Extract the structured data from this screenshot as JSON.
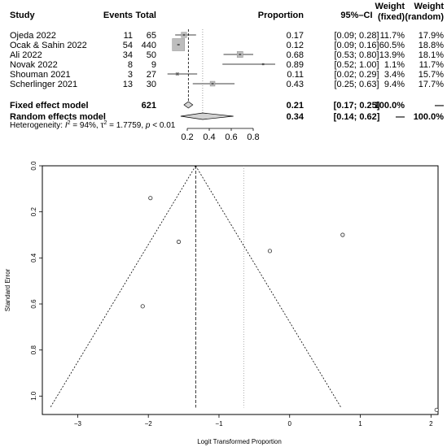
{
  "chart_data": [
    {
      "type": "forest",
      "headers": {
        "study": "Study",
        "events": "Events",
        "total": "Total",
        "proportion": "Proportion",
        "ci": "95%–CI",
        "weight_fixed_1": "Weight",
        "weight_fixed_2": "(fixed)",
        "weight_random_1": "Weight",
        "weight_random_2": "(random)"
      },
      "studies": [
        {
          "name": "Ojeda 2022",
          "events": "11",
          "total": "65",
          "prop_text": "0.17",
          "ci_text": "[0.09; 0.28]",
          "wf": "11.7%",
          "wr": "17.9%",
          "p": 0.17,
          "lo": 0.09,
          "hi": 0.28,
          "w": 11.7
        },
        {
          "name": "Ocak & Sahin 2022",
          "events": "54",
          "total": "440",
          "prop_text": "0.12",
          "ci_text": "[0.09; 0.16]",
          "wf": "60.5%",
          "wr": "18.8%",
          "p": 0.12,
          "lo": 0.09,
          "hi": 0.16,
          "w": 60.5
        },
        {
          "name": "Ali 2022",
          "events": "34",
          "total": "50",
          "prop_text": "0.68",
          "ci_text": "[0.53; 0.80]",
          "wf": "13.9%",
          "wr": "18.1%",
          "p": 0.68,
          "lo": 0.53,
          "hi": 0.8,
          "w": 13.9
        },
        {
          "name": "Novak 2022",
          "events": "8",
          "total": "9",
          "prop_text": "0.89",
          "ci_text": "[0.52; 1.00]",
          "wf": "1.1%",
          "wr": "11.7%",
          "p": 0.89,
          "lo": 0.52,
          "hi": 1.0,
          "w": 1.1
        },
        {
          "name": "Shouman 2021",
          "events": "3",
          "total": "27",
          "prop_text": "0.11",
          "ci_text": "[0.02; 0.29]",
          "wf": "3.4%",
          "wr": "15.7%",
          "p": 0.11,
          "lo": 0.02,
          "hi": 0.29,
          "w": 3.4
        },
        {
          "name": "Scherlinger 2021",
          "events": "13",
          "total": "30",
          "prop_text": "0.43",
          "ci_text": "[0.25; 0.63]",
          "wf": "9.4%",
          "wr": "17.7%",
          "p": 0.43,
          "lo": 0.25,
          "hi": 0.63,
          "w": 9.4
        }
      ],
      "fixed": {
        "label": "Fixed effect model",
        "total": "621",
        "prop_text": "0.21",
        "ci_text": "[0.17; 0.25]",
        "wf": "100.0%",
        "wr": "—",
        "p": 0.21,
        "lo": 0.17,
        "hi": 0.25
      },
      "random": {
        "label": "Random effects model",
        "prop_text": "0.34",
        "ci_text": "[0.14; 0.62]",
        "wf": "—",
        "wr": "100.0%",
        "p": 0.34,
        "lo": 0.14,
        "hi": 0.62
      },
      "heterogeneity": {
        "prefix": "Heterogeneity: ",
        "i2": "I",
        "i2_sup": "2",
        "i2_rest": " = 94%, ",
        "tau": "τ",
        "tau_sup": "2",
        "tau_rest": " = 1.7759, ",
        "p": "p",
        "p_rest": " < 0.01"
      },
      "xaxis": {
        "min": 0.0,
        "max": 1.0,
        "ticks": [
          0.2,
          0.4,
          0.6,
          0.8
        ],
        "tick_labels": [
          "0.2",
          "0.4",
          "0.6",
          "0.8"
        ]
      }
    },
    {
      "type": "scatter",
      "subtype": "funnel",
      "xlabel": "Logit Transformed Proportion",
      "ylabel": "Standard Error",
      "xlim": [
        -3.5,
        2.1
      ],
      "ylim": [
        1.08,
        0.0
      ],
      "y_inverted": true,
      "xticks": [
        -3,
        -2,
        -1,
        0,
        1,
        2
      ],
      "xtick_labels": [
        "−3",
        "−2",
        "−1",
        "0",
        "1",
        "2"
      ],
      "yticks": [
        0.0,
        0.2,
        0.4,
        0.6,
        0.8,
        1.0
      ],
      "ytick_labels": [
        "0.0",
        "0.2",
        "0.4",
        "0.6",
        "0.8",
        "1.0"
      ],
      "fixed_estimate": -1.33,
      "random_estimate": -0.65,
      "points": [
        {
          "x": -1.97,
          "y": 0.14
        },
        {
          "x": -1.57,
          "y": 0.33
        },
        {
          "x": -2.08,
          "y": 0.61
        },
        {
          "x": -0.28,
          "y": 0.37
        },
        {
          "x": 0.75,
          "y": 0.3
        },
        {
          "x": 2.08,
          "y": 1.06
        }
      ]
    }
  ]
}
